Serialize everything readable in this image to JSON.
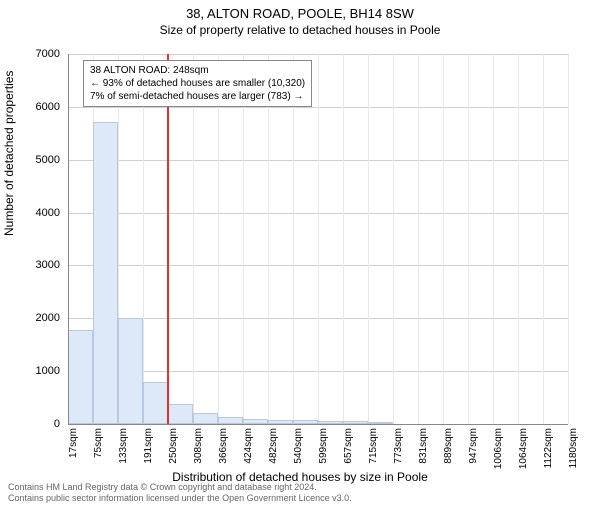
{
  "title": "38, ALTON ROAD, POOLE, BH14 8SW",
  "subtitle": "Size of property relative to detached houses in Poole",
  "ylabel": "Number of detached properties",
  "xlabel": "Distribution of detached houses by size in Poole",
  "copyright_line1": "Contains HM Land Registry data © Crown copyright and database right 2024.",
  "copyright_line2": "Contains public sector information licensed under the Open Government Licence v3.0.",
  "chart": {
    "type": "histogram",
    "ylim": [
      0,
      7000
    ],
    "yticks": [
      0,
      1000,
      2000,
      3000,
      4000,
      5000,
      6000,
      7000
    ],
    "xticks": [
      "17sqm",
      "75sqm",
      "133sqm",
      "191sqm",
      "250sqm",
      "308sqm",
      "366sqm",
      "424sqm",
      "482sqm",
      "540sqm",
      "599sqm",
      "657sqm",
      "715sqm",
      "773sqm",
      "831sqm",
      "889sqm",
      "947sqm",
      "1006sqm",
      "1064sqm",
      "1122sqm",
      "1180sqm"
    ],
    "xrange_sqm": [
      17,
      1180
    ],
    "bar_color": "#dde8f8",
    "bar_border": "#b8c8e0",
    "grid_color": "#e8e8e8",
    "background_color": "#ffffff",
    "marker_color": "#e03030",
    "marker_sqm": 248,
    "bars": [
      {
        "x_sqm": 17,
        "count": 1780
      },
      {
        "x_sqm": 75,
        "count": 5720
      },
      {
        "x_sqm": 133,
        "count": 2010
      },
      {
        "x_sqm": 191,
        "count": 790
      },
      {
        "x_sqm": 250,
        "count": 380
      },
      {
        "x_sqm": 308,
        "count": 210
      },
      {
        "x_sqm": 366,
        "count": 140
      },
      {
        "x_sqm": 424,
        "count": 100
      },
      {
        "x_sqm": 482,
        "count": 80
      },
      {
        "x_sqm": 540,
        "count": 70
      },
      {
        "x_sqm": 599,
        "count": 60
      },
      {
        "x_sqm": 657,
        "count": 60
      },
      {
        "x_sqm": 715,
        "count": 20
      },
      {
        "x_sqm": 773,
        "count": 0
      },
      {
        "x_sqm": 831,
        "count": 0
      },
      {
        "x_sqm": 889,
        "count": 0
      },
      {
        "x_sqm": 947,
        "count": 0
      },
      {
        "x_sqm": 1006,
        "count": 0
      },
      {
        "x_sqm": 1064,
        "count": 0
      },
      {
        "x_sqm": 1122,
        "count": 0
      }
    ]
  },
  "annotation": {
    "line1": "38 ALTON ROAD: 248sqm",
    "line2": "← 93% of detached houses are smaller (10,320)",
    "line3": "7% of semi-detached houses are larger (783) →"
  }
}
